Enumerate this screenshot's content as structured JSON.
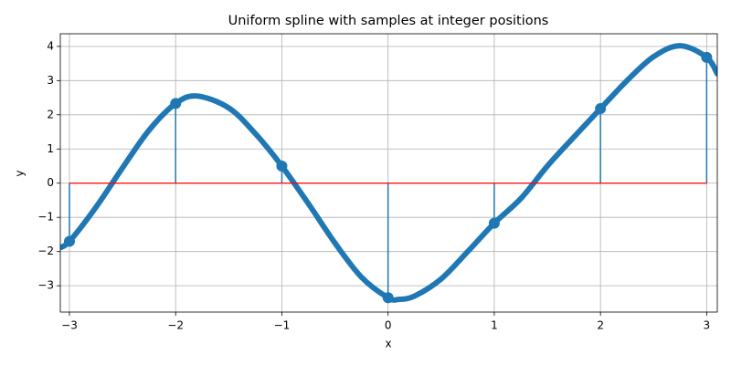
{
  "chart_data": {
    "type": "stem",
    "title": "Uniform spline with samples at integer positions",
    "xlabel": "x",
    "ylabel": "y",
    "x": [
      -3,
      -2,
      -1,
      0,
      1,
      2,
      3
    ],
    "values": [
      -1.7,
      2.33,
      0.5,
      -3.35,
      -1.17,
      2.18,
      3.68
    ],
    "color": "#1f77b4",
    "baseline_color": "#ff0000",
    "curve": {
      "x": [
        -3.1,
        -3,
        -2.75,
        -2.5,
        -2.25,
        -2,
        -1.8,
        -1.5,
        -1.25,
        -1,
        -0.75,
        -0.5,
        -0.25,
        0,
        0.1,
        0.25,
        0.5,
        0.75,
        1,
        1.25,
        1.5,
        1.75,
        2,
        2.25,
        2.5,
        2.75,
        3,
        3.1
      ],
      "y": [
        -1.9,
        -1.7,
        -0.7,
        0.45,
        1.55,
        2.33,
        2.55,
        2.2,
        1.45,
        0.5,
        -0.6,
        -1.75,
        -2.75,
        -3.35,
        -3.4,
        -3.3,
        -2.8,
        -2.0,
        -1.17,
        -0.45,
        0.5,
        1.35,
        2.18,
        3.0,
        3.7,
        4.02,
        3.68,
        3.2
      ]
    },
    "xlim": [
      -3.086,
      3.1
    ],
    "ylim": [
      -3.77,
      4.37
    ],
    "xticks": [
      {
        "value": -3,
        "label": "−3"
      },
      {
        "value": -2,
        "label": "−2"
      },
      {
        "value": -1,
        "label": "−1"
      },
      0,
      1,
      2,
      3
    ],
    "yticks": [
      {
        "value": -3,
        "label": "−3"
      },
      {
        "value": -2,
        "label": "−2"
      },
      {
        "value": -1,
        "label": "−1"
      },
      0,
      1,
      2,
      3,
      4
    ],
    "grid": true
  }
}
